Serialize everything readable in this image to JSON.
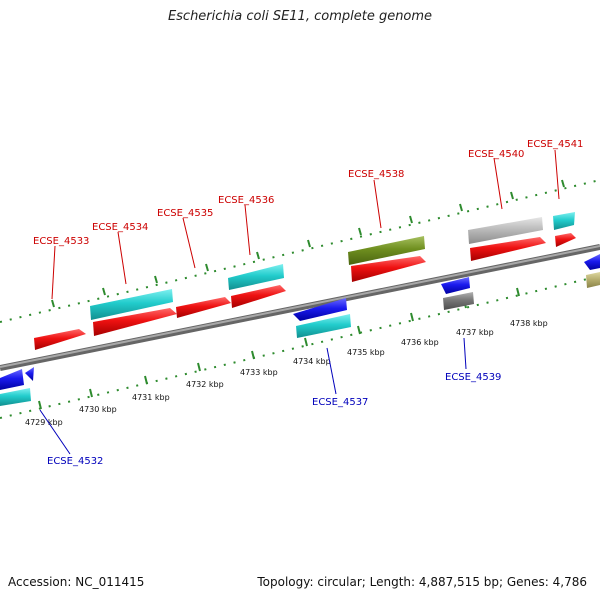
{
  "title": "Escherichia coli SE11, complete genome",
  "accession": "Accession: NC_011415",
  "summary": "Topology: circular; Length: 4,887,515 bp; Genes: 4,786",
  "colors": {
    "backbone": "#808080",
    "tick": "#2e8b2e",
    "forward_label": "#cc0000",
    "reverse_label": "#0000bb",
    "red": "#ee1111",
    "cyan": "#22cccc",
    "blue": "#1a1aee",
    "olive": "#6f8f1f",
    "gray": "#777777",
    "lightgray": "#bbbbbb",
    "khaki": "#b8b070"
  },
  "tick_labels": [
    "4729 kbp",
    "4730 kbp",
    "4731 kbp",
    "4732 kbp",
    "4733 kbp",
    "4734 kbp",
    "4735 kbp",
    "4736 kbp",
    "4737 kbp",
    "4738 kbp"
  ],
  "gene_labels": [
    {
      "text": "ECSE_4532",
      "strand": "reverse"
    },
    {
      "text": "ECSE_4533",
      "strand": "forward"
    },
    {
      "text": "ECSE_4534",
      "strand": "forward"
    },
    {
      "text": "ECSE_4535",
      "strand": "forward"
    },
    {
      "text": "ECSE_4536",
      "strand": "forward"
    },
    {
      "text": "ECSE_4537",
      "strand": "reverse"
    },
    {
      "text": "ECSE_4538",
      "strand": "forward"
    },
    {
      "text": "ECSE_4539",
      "strand": "reverse"
    },
    {
      "text": "ECSE_4540",
      "strand": "forward"
    },
    {
      "text": "ECSE_4541",
      "strand": "forward"
    }
  ]
}
